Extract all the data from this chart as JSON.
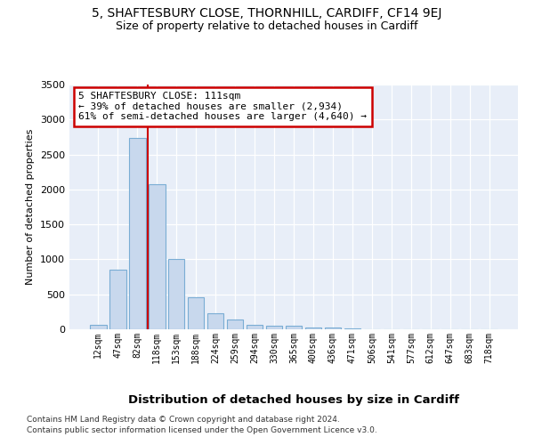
{
  "title1": "5, SHAFTESBURY CLOSE, THORNHILL, CARDIFF, CF14 9EJ",
  "title2": "Size of property relative to detached houses in Cardiff",
  "xlabel": "Distribution of detached houses by size in Cardiff",
  "ylabel": "Number of detached properties",
  "bar_labels": [
    "12sqm",
    "47sqm",
    "82sqm",
    "118sqm",
    "153sqm",
    "188sqm",
    "224sqm",
    "259sqm",
    "294sqm",
    "330sqm",
    "365sqm",
    "400sqm",
    "436sqm",
    "471sqm",
    "506sqm",
    "541sqm",
    "577sqm",
    "612sqm",
    "647sqm",
    "683sqm",
    "718sqm"
  ],
  "bar_values": [
    60,
    850,
    2730,
    2070,
    1010,
    455,
    225,
    145,
    70,
    55,
    55,
    25,
    25,
    15,
    5,
    5,
    3,
    2,
    2,
    2,
    2
  ],
  "bar_color": "#c8d8ed",
  "bar_edge_color": "#7aadd4",
  "vline_x": 3.0,
  "annotation_line1": "5 SHAFTESBURY CLOSE: 111sqm",
  "annotation_line2": "← 39% of detached houses are smaller (2,934)",
  "annotation_line3": "61% of semi-detached houses are larger (4,640) →",
  "annotation_box_color": "#ffffff",
  "annotation_box_edge": "#cc0000",
  "line_color": "#cc0000",
  "ylim": [
    0,
    3500
  ],
  "yticks": [
    0,
    500,
    1000,
    1500,
    2000,
    2500,
    3000,
    3500
  ],
  "footer1": "Contains HM Land Registry data © Crown copyright and database right 2024.",
  "footer2": "Contains public sector information licensed under the Open Government Licence v3.0.",
  "bg_color": "#ffffff",
  "plot_bg_color": "#e8eef8",
  "grid_color": "#ffffff",
  "title1_fontsize": 10,
  "title2_fontsize": 9
}
